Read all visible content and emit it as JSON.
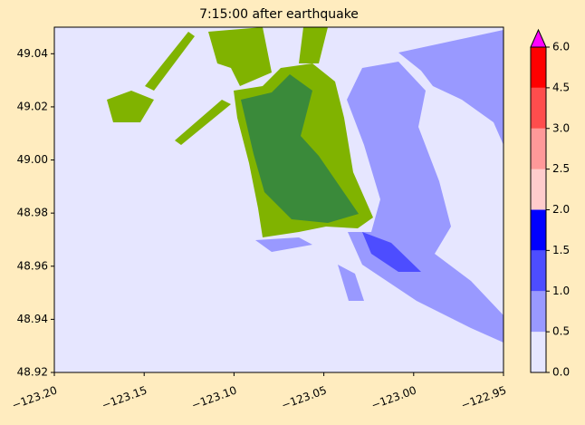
{
  "chart_data": {
    "type": "pcolor",
    "title": "7:15:00 after earthquake",
    "xlim": [
      -123.2,
      -122.95
    ],
    "xticks": [
      {
        "value": -123.2,
        "label": "−123.20"
      },
      {
        "value": -123.15,
        "label": "−123.15"
      },
      {
        "value": -123.1,
        "label": "−123.10"
      },
      {
        "value": -123.05,
        "label": "−123.05"
      },
      {
        "value": -123.0,
        "label": "−123.00"
      },
      {
        "value": -122.95,
        "label": "−122.95"
      }
    ],
    "ylim": [
      48.92,
      49.05
    ],
    "yticks": [
      48.92,
      48.94,
      48.96,
      48.98,
      {
        "value": 49.0,
        "label": "49.00"
      },
      49.02,
      49.04
    ],
    "colorbar": {
      "levels": [
        {
          "value": 0,
          "label": "0.0"
        },
        {
          "value": 0.5,
          "label": "0.5"
        },
        {
          "value": 1,
          "label": "1.0"
        },
        {
          "value": 1.5,
          "label": "1.5"
        },
        {
          "value": 2,
          "label": "2.0"
        },
        {
          "value": 2.5,
          "label": "2.5"
        },
        {
          "value": 3,
          "label": "3.0"
        },
        {
          "value": 4.5,
          "label": "4.5"
        },
        {
          "value": 6,
          "label": "6.0"
        }
      ],
      "colors": [
        "#e6e6ff",
        "#9999ff",
        "#4d4dff",
        "#0000ff",
        "#ffcccc",
        "#ff9999",
        "#ff4d4d",
        "#ff0000"
      ],
      "extend_color": "#ff00ff"
    }
  }
}
